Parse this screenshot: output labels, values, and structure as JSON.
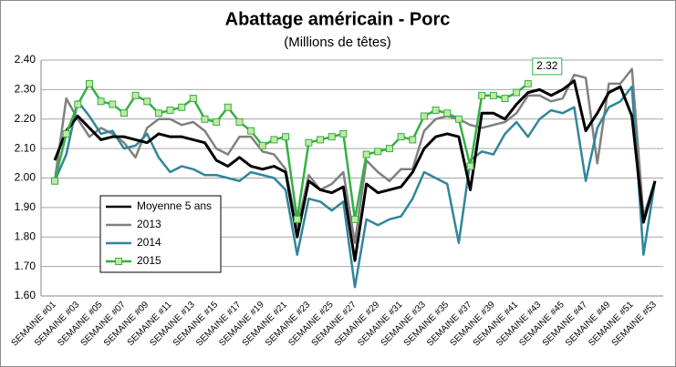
{
  "chart_data": {
    "type": "line",
    "title": "Abattage américain - Porc",
    "subtitle": "(Millions de têtes)",
    "categories": [
      "SEMAINE #01",
      null,
      "SEMAINE #03",
      null,
      "SEMAINE #05",
      null,
      "SEMAINE #07",
      null,
      "SEMAINE #09",
      null,
      "SEMAINE #11",
      null,
      "SEMAINE #13",
      null,
      "SEMAINE #15",
      null,
      "SEMAINE #17",
      null,
      "SEMAINE #19",
      null,
      "SEMAINE #21",
      null,
      "SEMAINE #23",
      null,
      "SEMAINE #25",
      null,
      "SEMAINE #27",
      null,
      "SEMAINE #29",
      null,
      "SEMAINE #31",
      null,
      "SEMAINE #33",
      null,
      "SEMAINE #35",
      null,
      "SEMAINE #37",
      null,
      "SEMAINE #39",
      null,
      "SEMAINE #41",
      null,
      "SEMAINE #43",
      null,
      "SEMAINE #45",
      null,
      "SEMAINE #47",
      null,
      "SEMAINE #49",
      null,
      "SEMAINE #51",
      null,
      "SEMAINE #53"
    ],
    "series": [
      {
        "name": "Moyenne 5 ans",
        "color": "#000000",
        "values": [
          2.06,
          2.16,
          2.21,
          2.17,
          2.13,
          2.14,
          2.14,
          2.13,
          2.12,
          2.15,
          2.14,
          2.14,
          2.13,
          2.12,
          2.06,
          2.04,
          2.07,
          2.04,
          2.03,
          2.04,
          2.02,
          1.8,
          1.99,
          1.96,
          1.95,
          1.97,
          1.72,
          1.98,
          1.95,
          1.96,
          1.97,
          2.02,
          2.1,
          2.14,
          2.15,
          2.14,
          1.96,
          2.22,
          2.22,
          2.2,
          2.25,
          2.29,
          2.3,
          2.28,
          2.3,
          2.33,
          2.16,
          2.22,
          2.29,
          2.31,
          2.21,
          1.85,
          1.99
        ]
      },
      {
        "name": "2013",
        "color": "#808080",
        "values": [
          1.99,
          2.27,
          2.2,
          2.14,
          2.17,
          2.15,
          2.12,
          2.07,
          2.17,
          2.2,
          2.2,
          2.18,
          2.19,
          2.16,
          2.1,
          2.08,
          2.14,
          2.14,
          2.09,
          2.08,
          2.03,
          1.83,
          2.01,
          1.96,
          1.98,
          2.02,
          1.78,
          2.06,
          2.02,
          1.99,
          2.03,
          2.03,
          2.16,
          2.2,
          2.21,
          2.2,
          2.18,
          2.17,
          2.18,
          2.19,
          2.22,
          2.28,
          2.28,
          2.26,
          2.27,
          2.35,
          2.34,
          2.05,
          2.32,
          2.32,
          2.37,
          1.87,
          1.99
        ]
      },
      {
        "name": "2014",
        "color": "#31859c",
        "values": [
          1.99,
          2.08,
          2.26,
          2.21,
          2.15,
          2.16,
          2.1,
          2.11,
          2.15,
          2.07,
          2.02,
          2.04,
          2.03,
          2.01,
          2.01,
          2.0,
          1.99,
          2.02,
          2.01,
          2.0,
          1.96,
          1.74,
          1.93,
          1.92,
          1.89,
          1.92,
          1.63,
          1.86,
          1.84,
          1.86,
          1.87,
          1.93,
          2.02,
          2.0,
          1.98,
          1.78,
          2.06,
          2.09,
          2.08,
          2.15,
          2.19,
          2.14,
          2.2,
          2.23,
          2.22,
          2.24,
          1.99,
          2.17,
          2.24,
          2.26,
          2.31,
          1.74,
          1.99
        ]
      },
      {
        "name": "2015",
        "color": "#33b044",
        "marker": "square",
        "marker_color": "#c4e8a2",
        "values": [
          1.99,
          2.15,
          2.25,
          2.32,
          2.26,
          2.25,
          2.22,
          2.28,
          2.26,
          2.22,
          2.23,
          2.24,
          2.27,
          2.2,
          2.19,
          2.24,
          2.19,
          2.16,
          2.11,
          2.13,
          2.14,
          1.86,
          2.12,
          2.13,
          2.14,
          2.15,
          1.86,
          2.08,
          2.09,
          2.1,
          2.14,
          2.13,
          2.21,
          2.23,
          2.22,
          2.2,
          2.04,
          2.28,
          2.28,
          2.27,
          2.29,
          2.32,
          null,
          null,
          null,
          null,
          null,
          null,
          null,
          null,
          null,
          null,
          null
        ],
        "value_labels": [
          null,
          null,
          null,
          null,
          null,
          null,
          null,
          null,
          null,
          null,
          null,
          null,
          null,
          null,
          null,
          null,
          null,
          null,
          null,
          null,
          null,
          null,
          null,
          null,
          null,
          null,
          null,
          null,
          null,
          null,
          null,
          null,
          null,
          null,
          null,
          null,
          null,
          null,
          null,
          null,
          null,
          "2.32",
          null,
          null,
          null,
          null,
          null,
          null,
          null,
          null,
          null,
          null,
          null
        ]
      }
    ],
    "ylim": [
      1.6,
      2.4
    ],
    "yticks": [
      {
        "value": 1.6,
        "label": "1.60"
      },
      {
        "value": 1.7,
        "label": "1.70"
      },
      {
        "value": 1.8,
        "label": "1.80"
      },
      {
        "value": 1.9,
        "label": "1.90"
      },
      {
        "value": 2.0,
        "label": "2.00"
      },
      {
        "value": 2.1,
        "label": "2.10"
      },
      {
        "value": 2.2,
        "label": "2.20"
      },
      {
        "value": 2.3,
        "label": "2.30"
      },
      {
        "value": 2.4,
        "label": "2.40"
      }
    ],
    "grid": true
  }
}
